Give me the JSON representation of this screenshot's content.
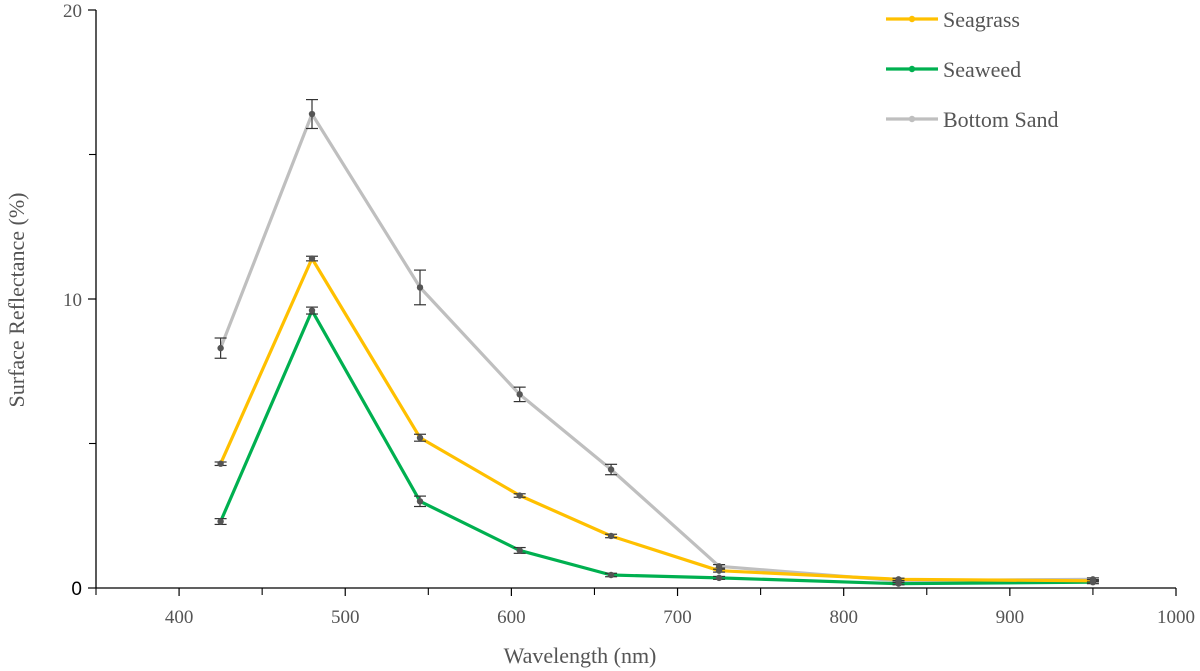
{
  "chart_data": {
    "type": "line",
    "xlabel": "Wavelength (nm)",
    "ylabel": "Surface Reflectance (%)",
    "xlim": [
      350,
      1000
    ],
    "ylim": [
      0,
      20
    ],
    "x_ticks": [
      400,
      500,
      600,
      700,
      800,
      900,
      1000
    ],
    "y_ticks": [
      0,
      10,
      20
    ],
    "y_tick_labels": [
      "0",
      "10",
      "20"
    ],
    "x": [
      425,
      480,
      545,
      605,
      660,
      725,
      833,
      950
    ],
    "grid": false,
    "legend_position": "top-right",
    "series": [
      {
        "name": "Seagrass",
        "color": "#FFC000",
        "values": [
          4.3,
          11.4,
          5.2,
          3.2,
          1.8,
          0.6,
          0.3,
          0.25
        ],
        "errors": [
          0.06,
          0.08,
          0.12,
          0.06,
          0.06,
          0.05,
          0.04,
          0.04
        ]
      },
      {
        "name": "Seaweed",
        "color": "#00B050",
        "values": [
          2.3,
          9.6,
          3.0,
          1.3,
          0.45,
          0.35,
          0.15,
          0.2
        ],
        "errors": [
          0.1,
          0.12,
          0.18,
          0.1,
          0.06,
          0.05,
          0.04,
          0.05
        ]
      },
      {
        "name": "Bottom Sand",
        "color": "#BFBFBF",
        "values": [
          8.3,
          16.4,
          10.4,
          6.7,
          4.1,
          0.75,
          0.25,
          0.3
        ],
        "errors": [
          0.35,
          0.5,
          0.6,
          0.25,
          0.18,
          0.06,
          0.05,
          0.05
        ]
      }
    ]
  }
}
